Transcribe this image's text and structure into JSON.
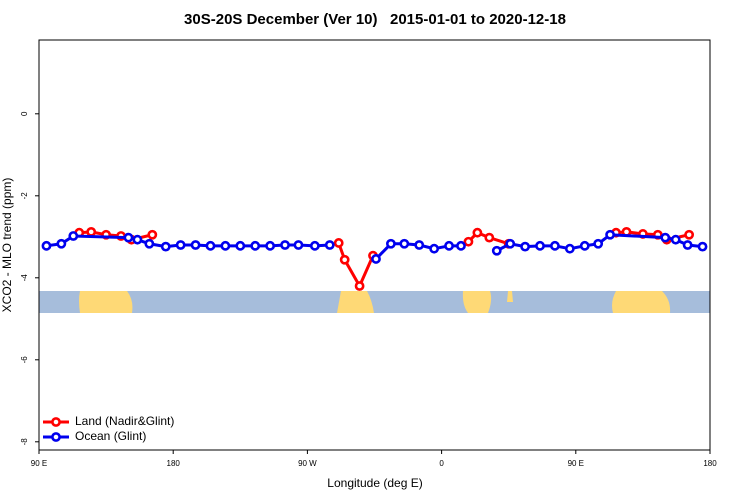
{
  "chart_data": {
    "type": "line",
    "title": "30S-20S December (Ver 10)   2015-01-01 to 2020-12-18",
    "x_label": "Longitude (deg E)",
    "y_label": "XCO2 - MLO trend (ppm)",
    "xlim": [
      90,
      540
    ],
    "xticks": [
      {
        "value": 90,
        "label": "90 E"
      },
      {
        "value": 180,
        "label": "180"
      },
      {
        "value": 270,
        "label": "90 W"
      },
      {
        "value": 360,
        "label": "0"
      },
      {
        "value": 450,
        "label": "90 E"
      },
      {
        "value": 540,
        "label": "180"
      }
    ],
    "ylim": [
      -8.2,
      1.8
    ],
    "yticks": [
      0,
      -2,
      -4,
      -6,
      -8
    ],
    "legend": "bottom-left",
    "series": [
      {
        "name": "Land (Nadir&Glint)",
        "color": "#ff0000",
        "x": [
          117,
          125,
          135,
          145,
          152,
          166,
          null,
          291,
          295,
          305,
          314,
          null,
          378,
          384,
          392,
          405,
          null,
          477,
          484,
          495,
          505,
          511,
          526
        ],
        "values": [
          -2.9,
          -2.88,
          -2.95,
          -2.98,
          -3.07,
          -2.95,
          null,
          -3.15,
          -3.56,
          -4.2,
          -3.46,
          null,
          -3.12,
          -2.9,
          -3.02,
          -3.17,
          null,
          -2.9,
          -2.88,
          -2.93,
          -2.95,
          -3.07,
          -2.95
        ]
      },
      {
        "name": "Ocean (Glint)",
        "color": "#0000ee",
        "x": [
          95,
          105,
          113,
          150,
          156,
          164,
          175,
          185,
          195,
          205,
          215,
          225,
          235,
          245,
          255,
          264,
          275,
          285,
          null,
          316,
          326,
          335,
          345,
          355,
          365,
          373,
          null,
          397,
          406,
          416,
          426,
          436,
          446,
          456,
          465,
          473,
          510,
          517,
          525,
          535
        ],
        "values": [
          -3.22,
          -3.17,
          -2.98,
          -3.02,
          -3.07,
          -3.17,
          -3.24,
          -3.2,
          -3.2,
          -3.22,
          -3.22,
          -3.22,
          -3.22,
          -3.22,
          -3.2,
          -3.2,
          -3.22,
          -3.2,
          null,
          -3.54,
          -3.17,
          -3.17,
          -3.2,
          -3.29,
          -3.22,
          -3.22,
          null,
          -3.34,
          -3.17,
          -3.24,
          -3.22,
          -3.22,
          -3.29,
          -3.22,
          -3.17,
          -2.95,
          -3.02,
          -3.07,
          -3.2,
          -3.24
        ]
      }
    ]
  }
}
